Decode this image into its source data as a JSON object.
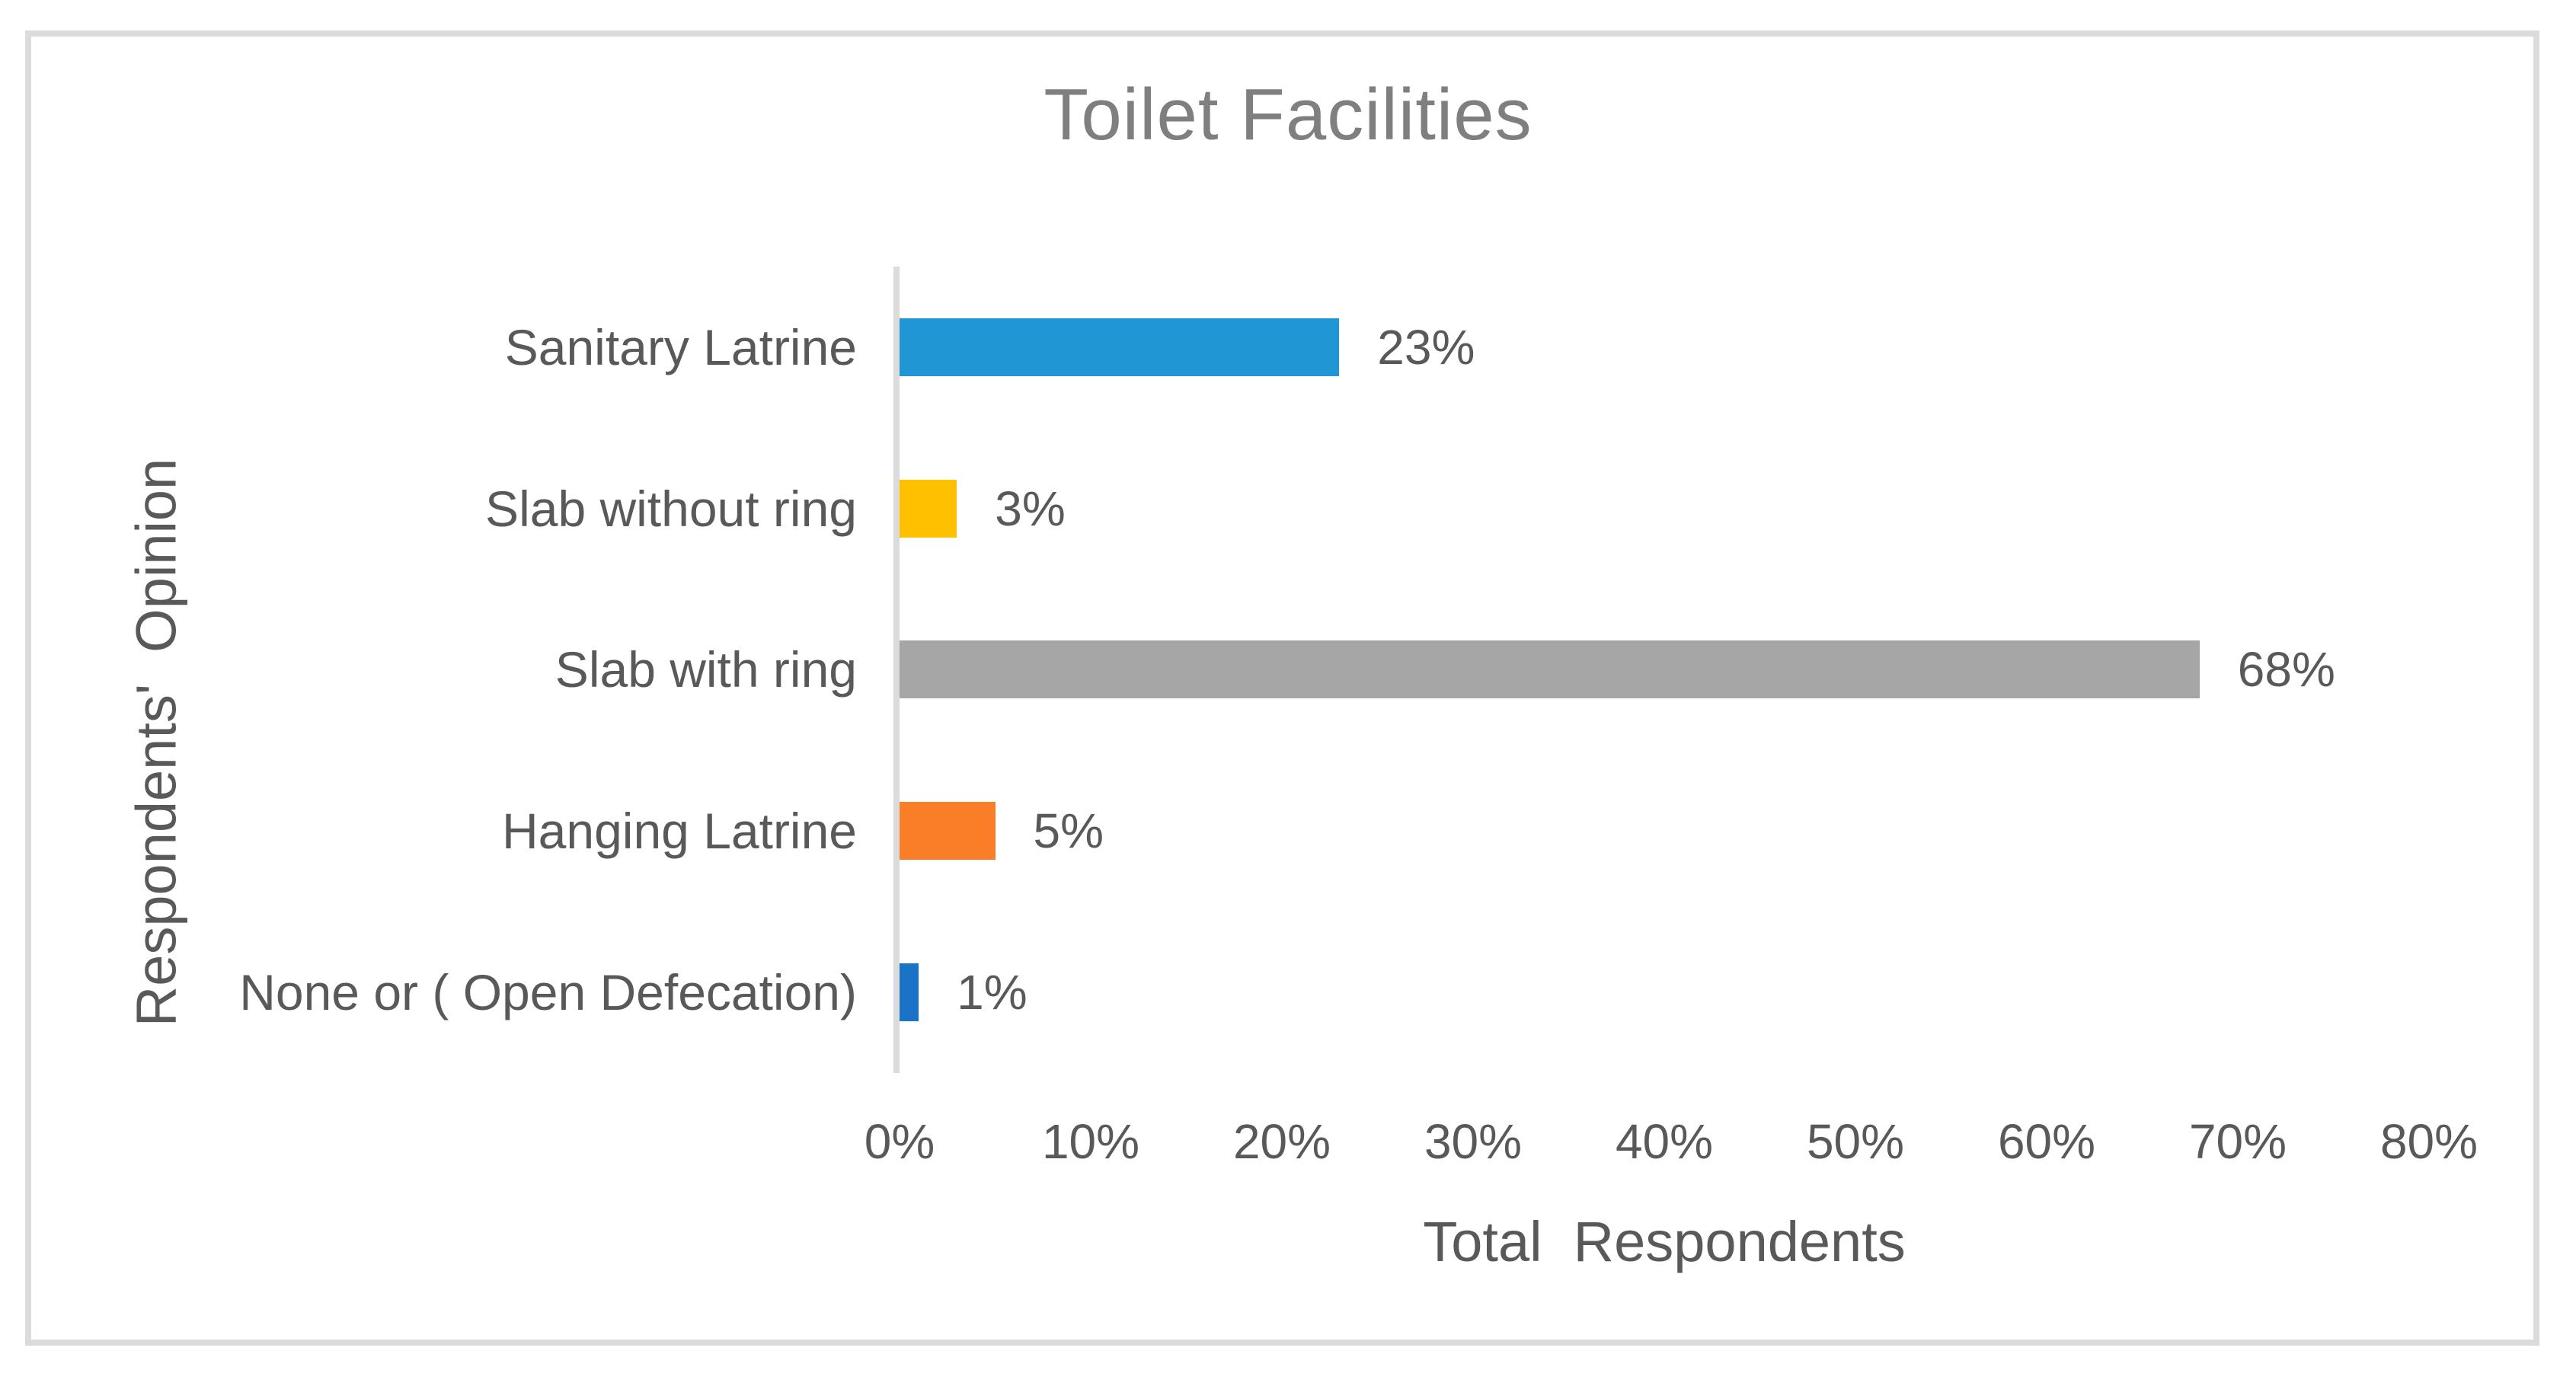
{
  "chart_data": {
    "type": "bar",
    "orientation": "horizontal",
    "title": "Toilet Facilities",
    "xlabel": "Total  Respondents",
    "ylabel": "Respondents'  Opinion",
    "categories": [
      "Sanitary Latrine",
      "Slab without ring",
      "Slab with ring",
      "Hanging Latrine",
      "None or ( Open Defecation)"
    ],
    "values": [
      23,
      3,
      68,
      5,
      1
    ],
    "value_labels": [
      "23%",
      "3%",
      "68%",
      "5%",
      "1%"
    ],
    "bar_colors": [
      "#2196D5",
      "#FFC000",
      "#A6A6A6",
      "#FA7D28",
      "#1B73C8"
    ],
    "x_ticks": [
      "0%",
      "10%",
      "20%",
      "30%",
      "40%",
      "50%",
      "60%",
      "70%",
      "80%"
    ],
    "xlim": [
      0,
      80
    ],
    "grid": false,
    "legend": "none",
    "data_labels": "outside-end"
  },
  "colors": {
    "background": "#FFFFFF",
    "frame_border": "#DBDBDB",
    "axis_line": "#DBDBDB",
    "title_text": "#7F7F7F",
    "label_text": "#595959"
  }
}
